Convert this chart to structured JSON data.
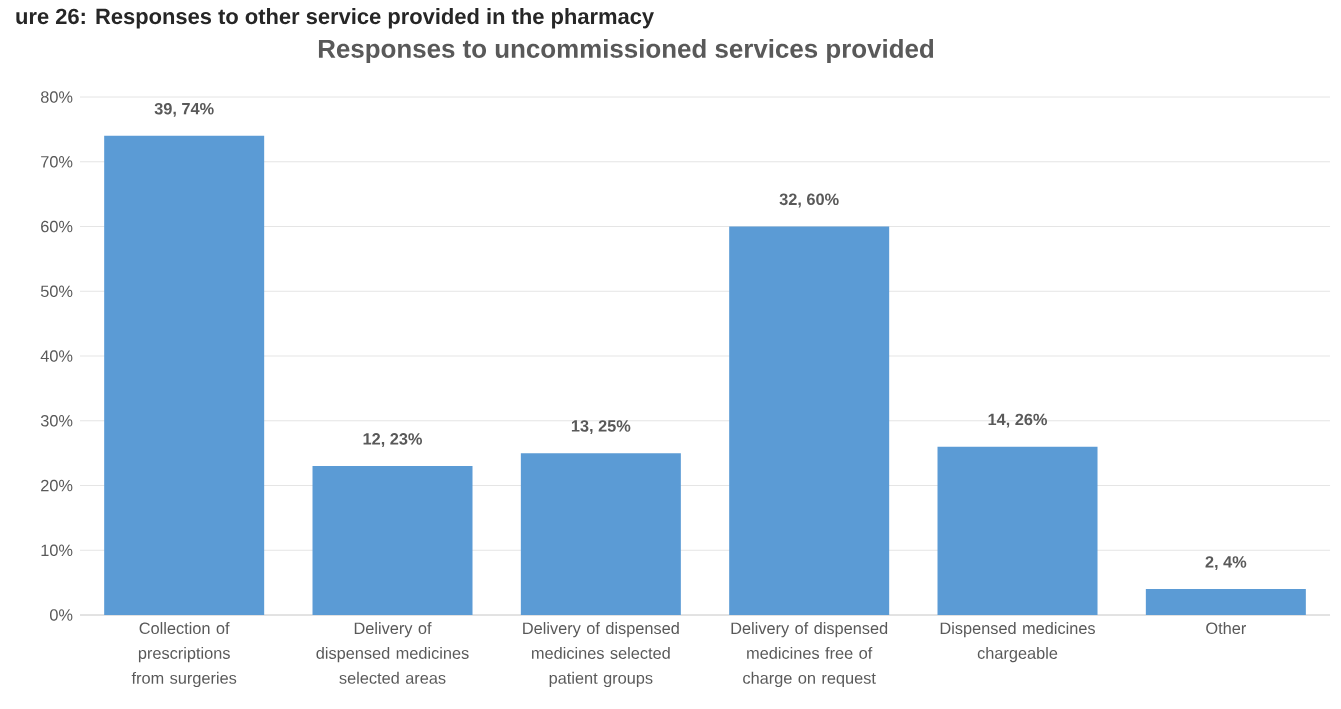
{
  "chart_data": {
    "type": "bar",
    "title": "Responses to uncommissioned services provided",
    "categories": [
      "Collection of prescriptions from surgeries",
      "Delivery of dispensed medicines selected areas",
      "Delivery of dispensed medicines selected patient groups",
      "Delivery of dispensed medicines free of charge on request",
      "Dispensed medicines chargeable",
      "Other"
    ],
    "values": [
      74,
      23,
      25,
      60,
      26,
      4
    ],
    "value_labels": [
      "39, 74%",
      "12, 23%",
      "13, 25%",
      "32, 60%",
      "14, 26%",
      "2, 4%"
    ],
    "color": "#5b9bd5",
    "ylim": [
      0,
      80
    ],
    "yticks": [
      {
        "value": 0,
        "label": "0%"
      },
      {
        "value": 10,
        "label": "10%"
      },
      {
        "value": 20,
        "label": "20%"
      },
      {
        "value": 30,
        "label": "30%"
      },
      {
        "value": 40,
        "label": "40%"
      },
      {
        "value": 50,
        "label": "50%"
      },
      {
        "value": 60,
        "label": "60%"
      },
      {
        "value": 70,
        "label": "70%"
      },
      {
        "value": 80,
        "label": "80%"
      }
    ],
    "grid": "y",
    "annotations": [
      "ure 26: Responses to other service provided in the pharmacy"
    ]
  }
}
